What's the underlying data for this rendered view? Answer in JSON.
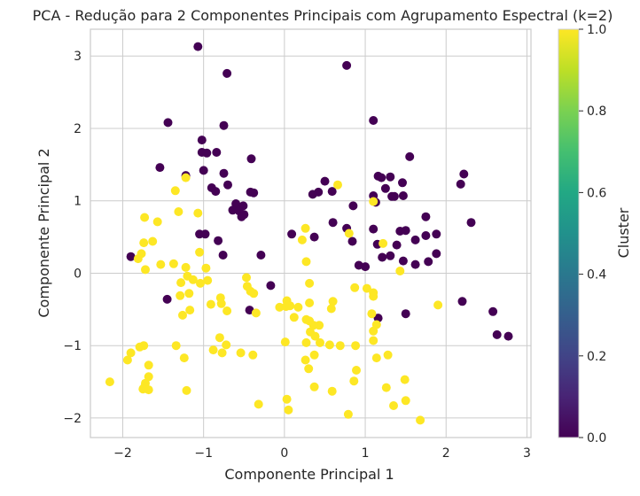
{
  "chart_data": {
    "type": "scatter",
    "title": "PCA - Redução para 2 Componentes Principais com Agrupamento Espectral (k=2)",
    "xlabel": "Componente Principal 1",
    "ylabel": "Componente Principal 2",
    "xlim": [
      -2.4,
      3.05
    ],
    "ylim": [
      -2.27,
      3.37
    ],
    "xticks": [
      -2,
      -1,
      0,
      1,
      2,
      3
    ],
    "yticks": [
      -2,
      -1,
      0,
      1,
      2,
      3
    ],
    "grid": true,
    "colorbar": {
      "label": "Cluster",
      "range": [
        0.0,
        1.0
      ],
      "ticks": [
        "0.0",
        "0.2",
        "0.4",
        "0.6",
        "0.8",
        "1.0"
      ],
      "colormap": "viridis"
    },
    "colors": {
      "cluster_0": "#440154",
      "cluster_1": "#fde725"
    },
    "series": [
      {
        "cluster": 0,
        "points": [
          [
            -1.07,
            3.13
          ],
          [
            -0.71,
            2.76
          ],
          [
            0.77,
            2.87
          ],
          [
            -1.44,
            2.08
          ],
          [
            -0.75,
            2.04
          ],
          [
            1.1,
            2.11
          ],
          [
            -1.02,
            1.84
          ],
          [
            -1.02,
            1.67
          ],
          [
            -0.96,
            1.66
          ],
          [
            -0.84,
            1.67
          ],
          [
            -0.41,
            1.58
          ],
          [
            1.55,
            1.61
          ],
          [
            -1.54,
            1.46
          ],
          [
            -1.0,
            1.42
          ],
          [
            -0.75,
            1.38
          ],
          [
            -1.22,
            1.35
          ],
          [
            0.5,
            1.27
          ],
          [
            1.16,
            1.34
          ],
          [
            1.2,
            1.32
          ],
          [
            1.31,
            1.33
          ],
          [
            2.22,
            1.37
          ],
          [
            -0.7,
            1.22
          ],
          [
            -0.9,
            1.18
          ],
          [
            0.42,
            1.12
          ],
          [
            0.59,
            1.13
          ],
          [
            1.25,
            1.17
          ],
          [
            1.46,
            1.25
          ],
          [
            2.18,
            1.23
          ],
          [
            -0.85,
            1.13
          ],
          [
            -0.42,
            1.12
          ],
          [
            -0.38,
            1.11
          ],
          [
            0.35,
            1.09
          ],
          [
            1.1,
            1.07
          ],
          [
            1.33,
            1.06
          ],
          [
            1.36,
            1.06
          ],
          [
            1.47,
            1.07
          ],
          [
            1.13,
            0.98
          ],
          [
            0.85,
            0.93
          ],
          [
            -0.6,
            0.96
          ],
          [
            -0.51,
            0.93
          ],
          [
            -0.5,
            0.81
          ],
          [
            -0.64,
            0.87
          ],
          [
            -0.56,
            0.86
          ],
          [
            -0.53,
            0.78
          ],
          [
            1.75,
            0.78
          ],
          [
            2.31,
            0.7
          ],
          [
            0.6,
            0.7
          ],
          [
            -1.05,
            0.54
          ],
          [
            -0.98,
            0.54
          ],
          [
            -0.82,
            0.45
          ],
          [
            0.09,
            0.54
          ],
          [
            0.37,
            0.5
          ],
          [
            0.77,
            0.62
          ],
          [
            0.84,
            0.44
          ],
          [
            1.1,
            0.61
          ],
          [
            1.43,
            0.58
          ],
          [
            1.5,
            0.59
          ],
          [
            1.75,
            0.52
          ],
          [
            1.62,
            0.46
          ],
          [
            1.88,
            0.54
          ],
          [
            1.15,
            0.4
          ],
          [
            1.39,
            0.39
          ],
          [
            1.88,
            0.27
          ],
          [
            1.31,
            0.24
          ],
          [
            1.21,
            0.22
          ],
          [
            -1.9,
            0.23
          ],
          [
            -0.29,
            0.25
          ],
          [
            -0.76,
            0.25
          ],
          [
            0.92,
            0.11
          ],
          [
            1.0,
            0.09
          ],
          [
            1.47,
            0.17
          ],
          [
            1.62,
            0.12
          ],
          [
            1.78,
            0.16
          ],
          [
            -1.45,
            -0.36
          ],
          [
            -0.43,
            -0.51
          ],
          [
            -0.17,
            -0.17
          ],
          [
            1.16,
            -0.62
          ],
          [
            1.5,
            -0.56
          ],
          [
            2.2,
            -0.39
          ],
          [
            2.58,
            -0.53
          ],
          [
            2.63,
            -0.85
          ],
          [
            2.77,
            -0.87
          ]
        ]
      },
      {
        "cluster": 1,
        "points": [
          [
            -1.35,
            1.14
          ],
          [
            -1.22,
            1.32
          ],
          [
            0.66,
            1.22
          ],
          [
            -1.07,
            0.83
          ],
          [
            -1.31,
            0.85
          ],
          [
            -1.57,
            0.71
          ],
          [
            -1.73,
            0.77
          ],
          [
            1.1,
            0.99
          ],
          [
            0.26,
            0.62
          ],
          [
            0.22,
            0.46
          ],
          [
            0.8,
            0.55
          ],
          [
            -1.63,
            0.44
          ],
          [
            -1.74,
            0.42
          ],
          [
            -1.81,
            0.2
          ],
          [
            -1.77,
            0.27
          ],
          [
            -1.72,
            0.05
          ],
          [
            -1.53,
            0.12
          ],
          [
            -1.37,
            0.13
          ],
          [
            -1.22,
            0.08
          ],
          [
            -1.05,
            0.29
          ],
          [
            -0.97,
            0.07
          ],
          [
            0.27,
            0.16
          ],
          [
            1.22,
            0.41
          ],
          [
            1.43,
            0.03
          ],
          [
            -1.2,
            -0.04
          ],
          [
            -1.13,
            -0.09
          ],
          [
            -1.04,
            -0.14
          ],
          [
            -1.28,
            -0.13
          ],
          [
            -1.29,
            -0.31
          ],
          [
            -1.18,
            -0.28
          ],
          [
            -0.95,
            -0.1
          ],
          [
            -0.47,
            -0.06
          ],
          [
            -0.46,
            -0.18
          ],
          [
            -0.42,
            -0.25
          ],
          [
            -0.38,
            -0.28
          ],
          [
            0.31,
            -0.14
          ],
          [
            0.87,
            -0.2
          ],
          [
            1.02,
            -0.21
          ],
          [
            1.1,
            -0.27
          ],
          [
            1.1,
            -0.32
          ],
          [
            -1.26,
            -0.58
          ],
          [
            -1.17,
            -0.51
          ],
          [
            -0.91,
            -0.43
          ],
          [
            -0.79,
            -0.34
          ],
          [
            -0.78,
            -0.42
          ],
          [
            -0.71,
            -0.52
          ],
          [
            -0.35,
            -0.55
          ],
          [
            0.03,
            -0.38
          ],
          [
            0.02,
            -0.46
          ],
          [
            -0.06,
            -0.47
          ],
          [
            0.07,
            -0.45
          ],
          [
            0.17,
            -0.47
          ],
          [
            0.31,
            -0.41
          ],
          [
            0.6,
            -0.39
          ],
          [
            0.58,
            -0.49
          ],
          [
            1.9,
            -0.44
          ],
          [
            1.08,
            -0.56
          ],
          [
            1.14,
            -0.71
          ],
          [
            1.1,
            -0.8
          ],
          [
            1.1,
            -0.93
          ],
          [
            0.12,
            -0.61
          ],
          [
            0.27,
            -0.64
          ],
          [
            0.31,
            -0.66
          ],
          [
            0.43,
            -0.72
          ],
          [
            0.32,
            -0.81
          ],
          [
            0.38,
            -0.87
          ],
          [
            0.36,
            -0.72
          ],
          [
            -0.8,
            -0.89
          ],
          [
            -0.72,
            -0.99
          ],
          [
            -0.77,
            -1.1
          ],
          [
            -0.88,
            -1.06
          ],
          [
            -0.54,
            -1.1
          ],
          [
            -0.39,
            -1.13
          ],
          [
            0.01,
            -0.95
          ],
          [
            0.27,
            -0.96
          ],
          [
            0.44,
            -0.96
          ],
          [
            0.56,
            -0.99
          ],
          [
            0.69,
            -1.0
          ],
          [
            0.88,
            -1.0
          ],
          [
            1.14,
            -1.17
          ],
          [
            1.28,
            -1.13
          ],
          [
            0.89,
            -1.34
          ],
          [
            0.3,
            -1.32
          ],
          [
            0.26,
            -1.2
          ],
          [
            0.37,
            -1.13
          ],
          [
            0.37,
            -1.57
          ],
          [
            0.59,
            -1.63
          ],
          [
            0.86,
            -1.49
          ],
          [
            1.26,
            -1.58
          ],
          [
            1.35,
            -1.83
          ],
          [
            1.49,
            -1.47
          ],
          [
            1.5,
            -1.76
          ],
          [
            1.68,
            -2.03
          ],
          [
            0.79,
            -1.95
          ],
          [
            0.03,
            -1.74
          ],
          [
            0.05,
            -1.89
          ],
          [
            -0.32,
            -1.81
          ],
          [
            -1.21,
            -1.62
          ],
          [
            -1.34,
            -1.0
          ],
          [
            -1.74,
            -1.0
          ],
          [
            -1.79,
            -1.02
          ],
          [
            -1.94,
            -1.2
          ],
          [
            -1.9,
            -1.1
          ],
          [
            -1.68,
            -1.27
          ],
          [
            -1.68,
            -1.43
          ],
          [
            -1.72,
            -1.52
          ],
          [
            -1.73,
            -1.57
          ],
          [
            -1.75,
            -1.6
          ],
          [
            -1.68,
            -1.61
          ],
          [
            -2.16,
            -1.5
          ],
          [
            -1.24,
            -1.17
          ]
        ]
      }
    ]
  }
}
